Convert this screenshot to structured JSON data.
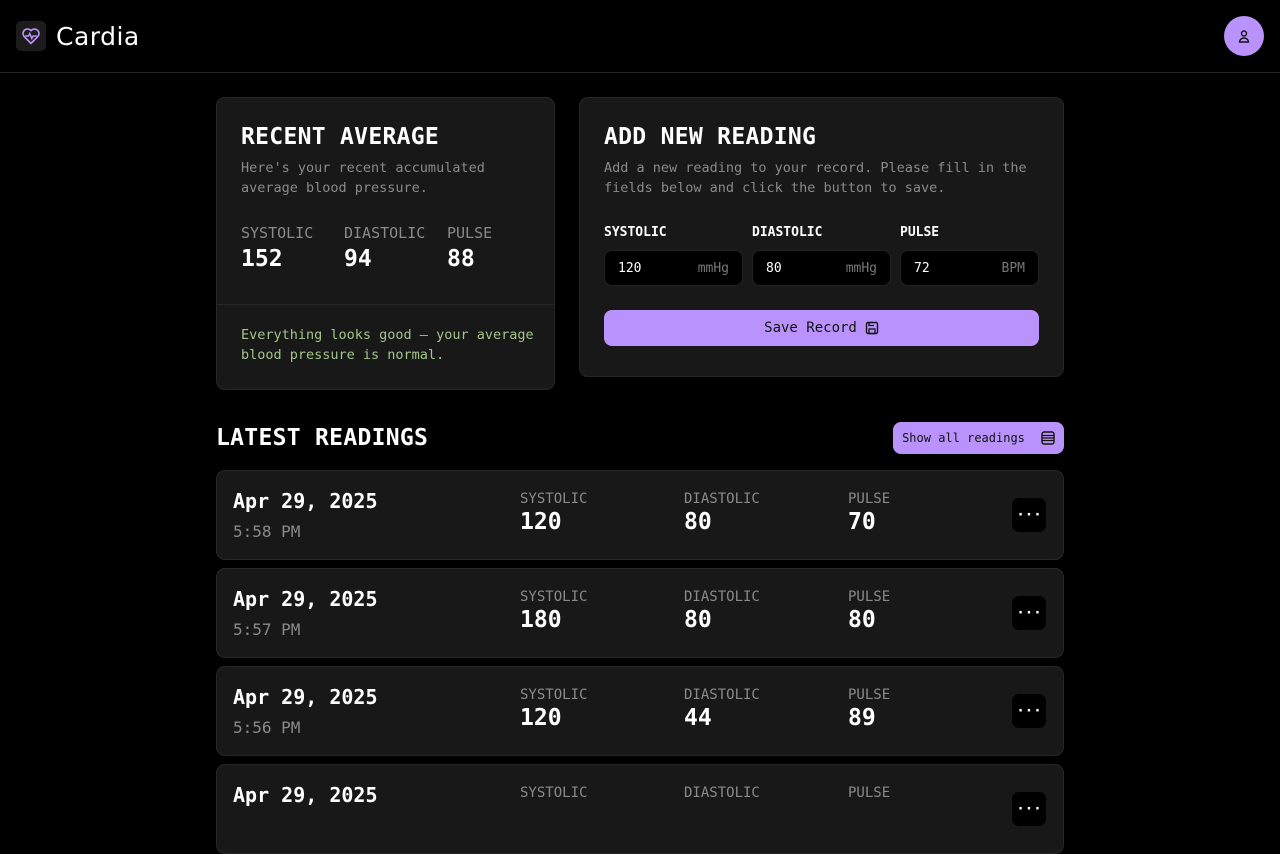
{
  "app": {
    "name": "Cardia",
    "accent": "#b993fb",
    "logo_icon": "heart-pulse-icon",
    "avatar_icon": "user-icon"
  },
  "average": {
    "title": "RECENT AVERAGE",
    "subtitle": "Here's your recent accumulated average blood pressure.",
    "stats": [
      {
        "label": "SYSTOLIC",
        "value": "152"
      },
      {
        "label": "DIASTOLIC",
        "value": "94"
      },
      {
        "label": "PULSE",
        "value": "88"
      }
    ],
    "status": "Everything looks good — your average blood pressure is normal.",
    "status_color": "#a3c48a"
  },
  "add": {
    "title": "ADD NEW READING",
    "subtitle": "Add a new reading to your record. Please fill in the fields below and click the button to save.",
    "fields": [
      {
        "label": "SYSTOLIC",
        "value": "120",
        "unit": "mmHg"
      },
      {
        "label": "DIASTOLIC",
        "value": "80",
        "unit": "mmHg"
      },
      {
        "label": "PULSE",
        "value": "72",
        "unit": "BPM"
      }
    ],
    "save_label": "Save Record",
    "save_icon": "floppy-disk-icon"
  },
  "latest": {
    "title": "LATEST READINGS",
    "show_all_label": "Show all readings",
    "show_all_icon": "list-icon",
    "labels": {
      "systolic": "SYSTOLIC",
      "diastolic": "DIASTOLIC",
      "pulse": "PULSE"
    },
    "rows": [
      {
        "date": "Apr 29, 2025",
        "time": "5:58 PM",
        "systolic": "120",
        "diastolic": "80",
        "pulse": "70"
      },
      {
        "date": "Apr 29, 2025",
        "time": "5:57 PM",
        "systolic": "180",
        "diastolic": "80",
        "pulse": "80"
      },
      {
        "date": "Apr 29, 2025",
        "time": "5:56 PM",
        "systolic": "120",
        "diastolic": "44",
        "pulse": "89"
      },
      {
        "date": "Apr 29, 2025"
      }
    ],
    "more_label": "···"
  }
}
